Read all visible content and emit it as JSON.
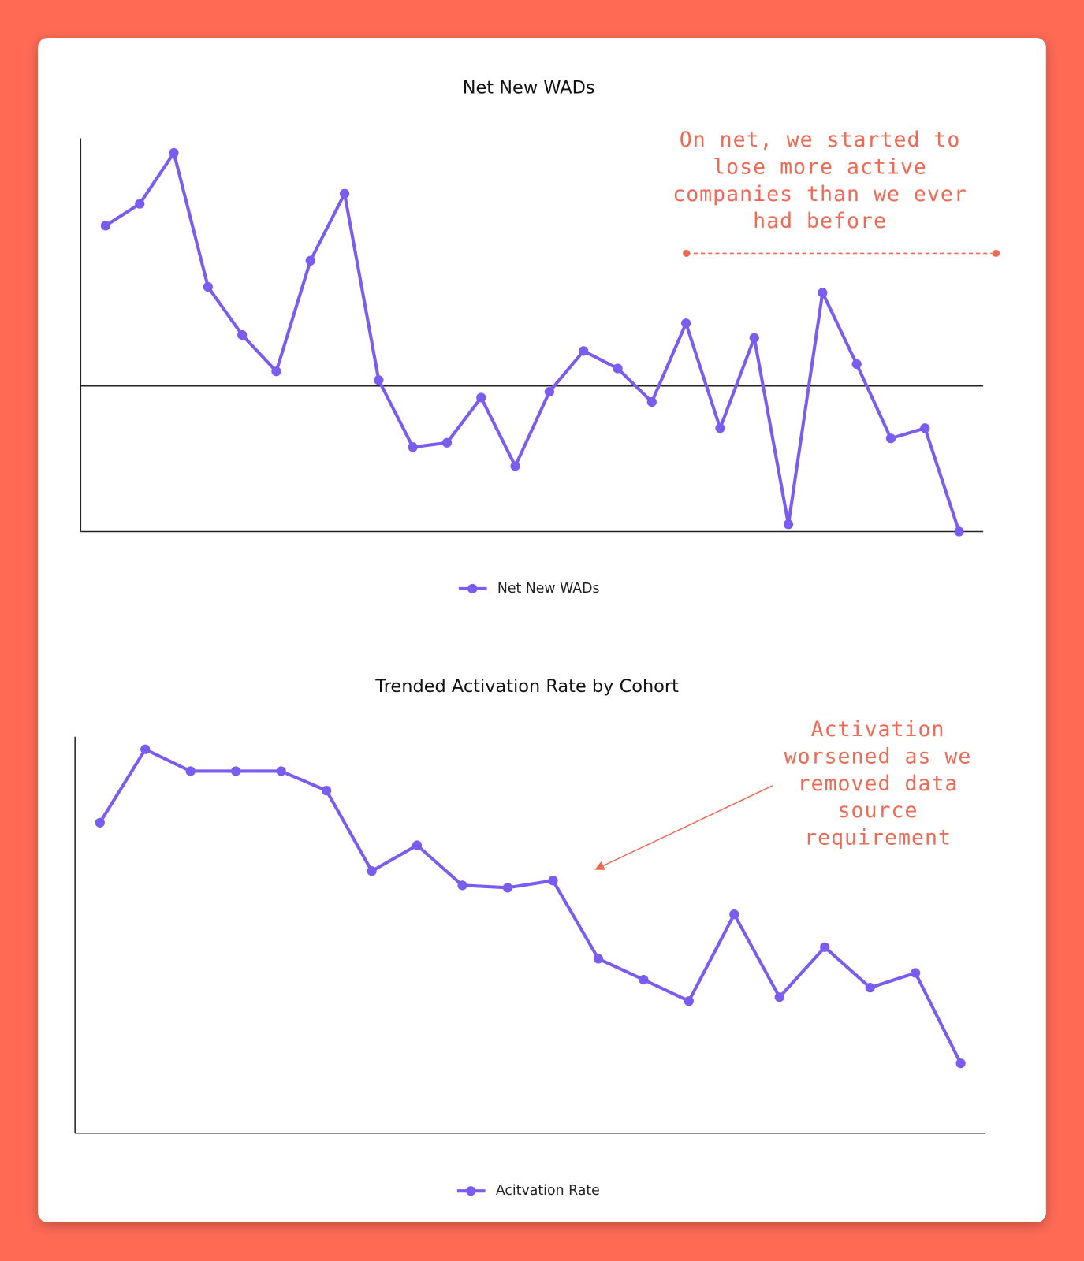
{
  "chart_data": [
    {
      "type": "line",
      "title": "Net New WADs",
      "categories": [
        null,
        null,
        null,
        null,
        null,
        null,
        null,
        null,
        null,
        null,
        null,
        null,
        null,
        null,
        null,
        null,
        null,
        null,
        null,
        null,
        null,
        null,
        null,
        null,
        null,
        null
      ],
      "series": [
        {
          "name": "Net New WADs",
          "color": "#7b5cf0",
          "values": [
            11.0,
            12.5,
            16.0,
            6.8,
            3.5,
            1.0,
            8.6,
            13.2,
            0.4,
            -4.2,
            -3.9,
            -0.8,
            -5.5,
            -0.4,
            2.4,
            1.2,
            -1.1,
            4.3,
            -2.9,
            3.3,
            -9.5,
            6.4,
            1.5,
            -3.6,
            -2.9,
            -10.0
          ]
        }
      ],
      "ylim": [
        -10,
        17
      ],
      "reference_line": 0,
      "annotation": [
        "On net, we started to",
        "lose more active",
        "companies than we ever",
        "had before"
      ]
    },
    {
      "type": "line",
      "title": "Trended Activation Rate by Cohort",
      "categories": [
        null,
        null,
        null,
        null,
        null,
        null,
        null,
        null,
        null,
        null,
        null,
        null,
        null,
        null,
        null,
        null,
        null,
        null,
        null,
        null
      ],
      "series": [
        {
          "name": "Acitvation Rate",
          "color": "#7b5cf0",
          "values": [
            78.3,
            96.8,
            91.3,
            91.3,
            91.3,
            86.4,
            66.1,
            72.6,
            62.5,
            61.9,
            63.7,
            44.0,
            38.7,
            33.3,
            55.2,
            34.3,
            46.9,
            36.7,
            40.4,
            17.6
          ]
        }
      ],
      "ylim": [
        0,
        100
      ],
      "annotation": [
        "Activation",
        "worsened as we",
        "removed data",
        "source",
        "requirement"
      ]
    }
  ]
}
